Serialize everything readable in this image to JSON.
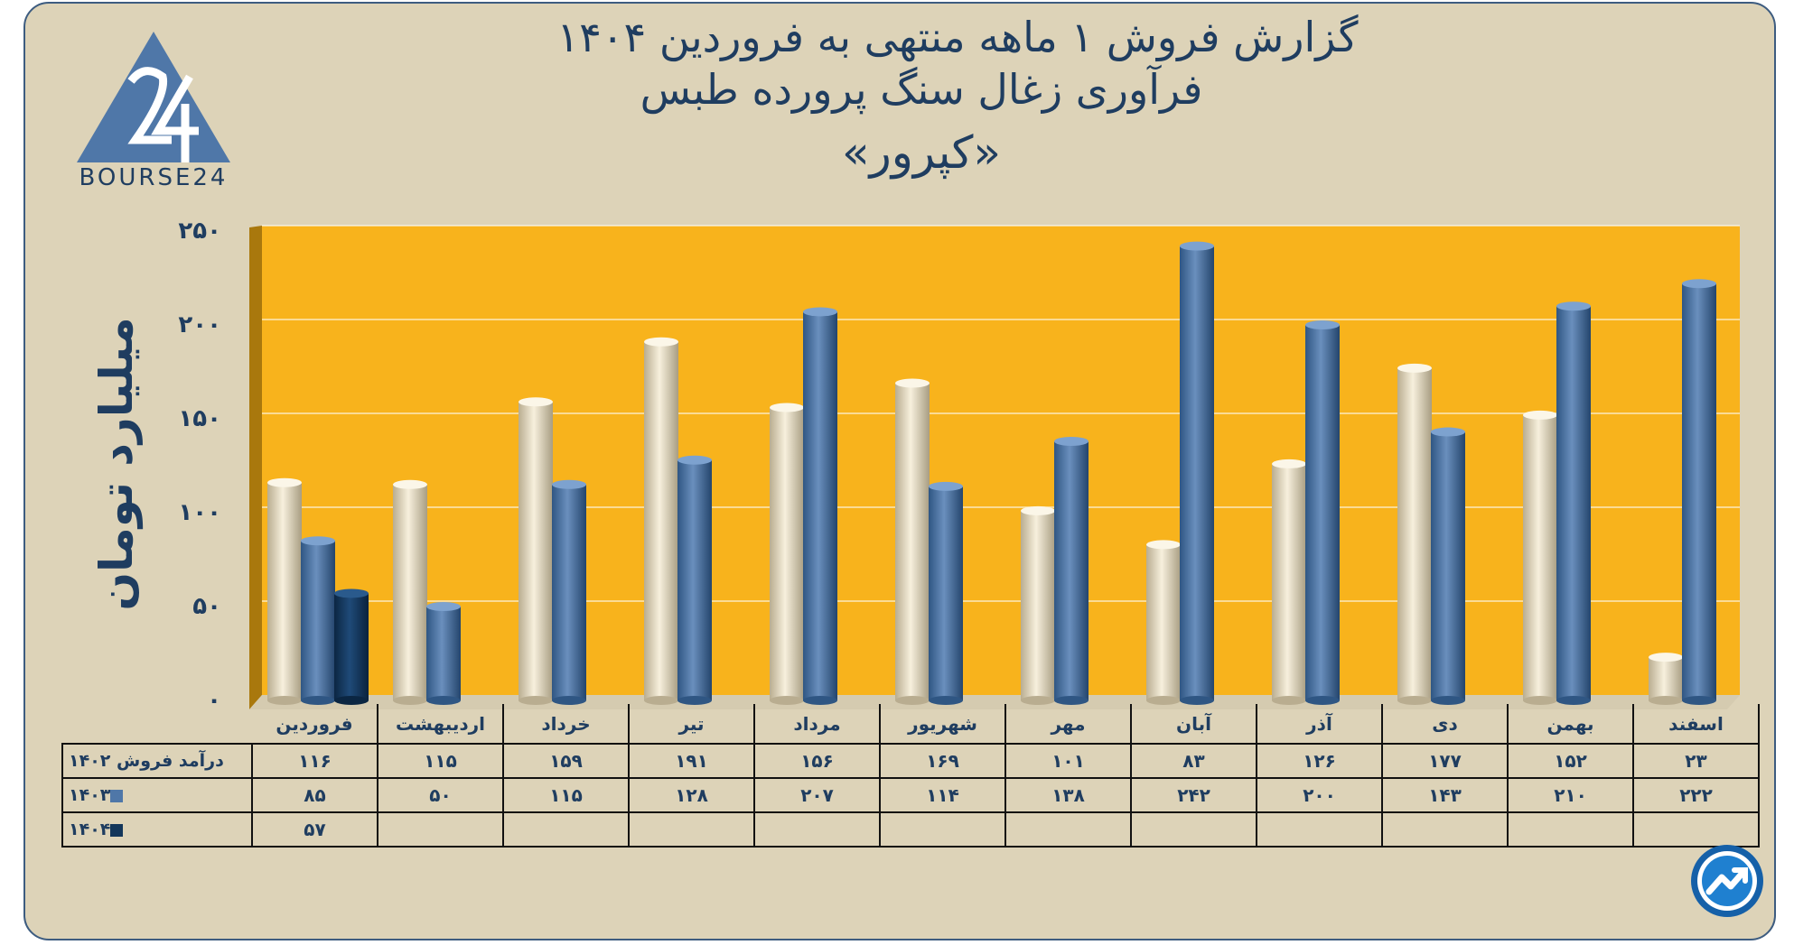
{
  "colors": {
    "background": "#ddd3b8",
    "plot_bg": "#f8b31c",
    "series_1402": "#efe6ce",
    "series_1403": "#4f77a8",
    "series_1404": "#13365a",
    "text": "#1f3d60"
  },
  "logo": {
    "text": "BOURSE24",
    "icon": "bourse24-triangle-logo"
  },
  "badge": {
    "icon": "trend-arrow-icon"
  },
  "chart_data": {
    "type": "bar",
    "title_line1": "گزارش  فروش ۱ ماهه منتهی به فروردین ۱۴۰۴",
    "title_line2": "فرآوری زغال سنگ پرورده طبس",
    "title_line3": "«کپرور»",
    "ylabel": "میلیارد تومان",
    "ylim": [
      0,
      250
    ],
    "yticks": [
      0,
      50,
      100,
      150,
      200,
      250
    ],
    "ytick_labels": [
      "۰",
      "۵۰",
      "۱۰۰",
      "۱۵۰",
      "۲۰۰",
      "۲۵۰"
    ],
    "categories": [
      "فروردین",
      "اردیبهشت",
      "خرداد",
      "تیر",
      "مرداد",
      "شهریور",
      "مهر",
      "آبان",
      "آذر",
      "دی",
      "بهمن",
      "اسفند"
    ],
    "series": [
      {
        "name": "درآمد فروش ۱۴۰۲",
        "color": "#efe6ce",
        "values": [
          116,
          115,
          159,
          191,
          156,
          169,
          101,
          83,
          126,
          177,
          152,
          23
        ],
        "labels": [
          "۱۱۶",
          "۱۱۵",
          "۱۵۹",
          "۱۹۱",
          "۱۵۶",
          "۱۶۹",
          "۱۰۱",
          "۸۳",
          "۱۲۶",
          "۱۷۷",
          "۱۵۲",
          "۲۳"
        ]
      },
      {
        "name": "۱۴۰۳",
        "color": "#4f77a8",
        "values": [
          85,
          50,
          115,
          128,
          207,
          114,
          138,
          242,
          200,
          143,
          210,
          222
        ],
        "labels": [
          "۸۵",
          "۵۰",
          "۱۱۵",
          "۱۲۸",
          "۲۰۷",
          "۱۱۴",
          "۱۳۸",
          "۲۴۲",
          "۲۰۰",
          "۱۴۳",
          "۲۱۰",
          "۲۲۲"
        ]
      },
      {
        "name": "۱۴۰۴",
        "color": "#13365a",
        "values": [
          57,
          null,
          null,
          null,
          null,
          null,
          null,
          null,
          null,
          null,
          null,
          null
        ],
        "labels": [
          "۵۷",
          "",
          "",
          "",
          "",
          "",
          "",
          "",
          "",
          "",
          "",
          ""
        ]
      }
    ],
    "grid": true,
    "legend": "table-below"
  }
}
